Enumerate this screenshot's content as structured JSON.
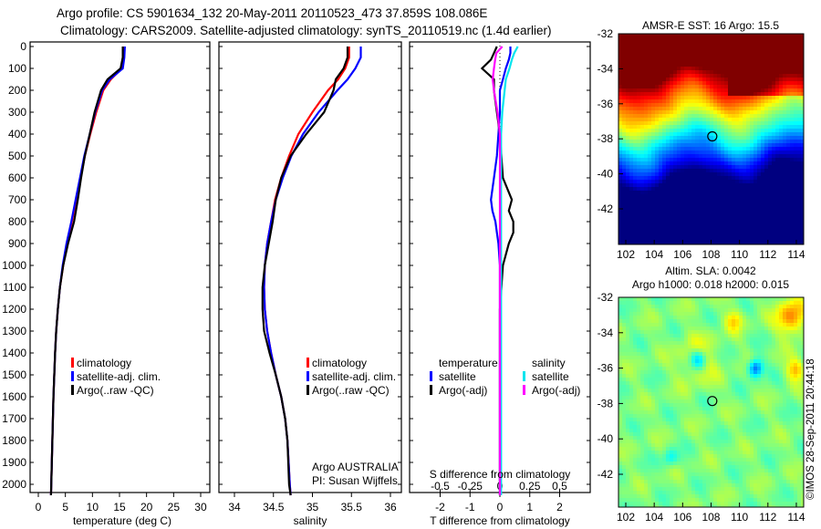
{
  "title_line1": "Argo profile: CS 5901634_132 20-May-2011 20110523_473 37.859S 108.086E",
  "title_line2": "Climatology: CARS2009. Satellite-adjusted climatology: synTS_20110519.nc (1.4d earlier)",
  "colors": {
    "climatology": "#ff0000",
    "satellite": "#0000ff",
    "argo": "#000000",
    "sal_satellite": "#00e5ee",
    "sal_argo": "#ff00ff"
  },
  "depth_ticks": [
    0,
    100,
    200,
    300,
    400,
    500,
    600,
    700,
    800,
    900,
    1000,
    1100,
    1200,
    1300,
    1400,
    1500,
    1600,
    1700,
    1800,
    1900,
    2000
  ],
  "chart_data": [
    {
      "type": "line",
      "xlabel": "temperature (deg C)",
      "ylabel": "depth",
      "xlim": [
        -1,
        31
      ],
      "ylim": [
        2050,
        0
      ],
      "xticks": [
        "0",
        "5",
        "10",
        "15",
        "20",
        "25",
        "30"
      ],
      "depth": [
        0,
        50,
        100,
        150,
        200,
        300,
        400,
        500,
        600,
        700,
        800,
        900,
        1000,
        1100,
        1200,
        1300,
        1400,
        1600,
        1800,
        2000,
        2050
      ],
      "series": [
        {
          "name": "climatology",
          "values": [
            15.7,
            15.6,
            15.4,
            13.4,
            12.0,
            10.7,
            9.6,
            8.6,
            7.8,
            7.0,
            6.2,
            5.3,
            4.6,
            4.0,
            3.6,
            3.3,
            3.1,
            2.8,
            2.6,
            2.4,
            2.35
          ]
        },
        {
          "name": "satellite-adj. clim.",
          "values": [
            16.0,
            15.9,
            15.6,
            13.2,
            11.8,
            10.5,
            9.5,
            8.5,
            7.7,
            6.9,
            6.1,
            5.2,
            4.5,
            4.0,
            3.6,
            3.3,
            3.1,
            2.8,
            2.6,
            2.4,
            2.35
          ]
        },
        {
          "name": "Argo(..raw -QC)",
          "values": [
            15.6,
            15.6,
            15.2,
            12.8,
            11.6,
            10.4,
            9.5,
            8.6,
            7.9,
            7.3,
            6.6,
            5.5,
            4.6,
            4.0,
            3.6,
            3.3,
            3.1,
            2.8,
            2.6,
            2.4,
            2.35
          ]
        }
      ],
      "legend": [
        "climatology",
        "satellite-adj. clim.",
        "Argo(..raw -QC)"
      ]
    },
    {
      "type": "line",
      "xlabel": "salinity",
      "xlim": [
        33.8,
        36.15
      ],
      "ylim": [
        2050,
        0
      ],
      "xticks": [
        "34",
        "34.5",
        "35",
        "35.5",
        "36"
      ],
      "depth": [
        0,
        50,
        100,
        150,
        200,
        300,
        400,
        500,
        600,
        700,
        800,
        900,
        1000,
        1100,
        1200,
        1300,
        1400,
        1500,
        1600,
        1700,
        1800,
        2000,
        2050
      ],
      "series": [
        {
          "name": "climatology",
          "values": [
            35.47,
            35.47,
            35.42,
            35.33,
            35.2,
            35.0,
            34.82,
            34.7,
            34.6,
            34.52,
            34.47,
            34.42,
            34.39,
            34.38,
            34.39,
            34.42,
            34.47,
            34.53,
            34.6,
            34.65,
            34.68,
            34.71,
            34.72
          ]
        },
        {
          "name": "satellite-adj. clim.",
          "values": [
            35.62,
            35.62,
            35.55,
            35.45,
            35.32,
            35.08,
            34.88,
            34.73,
            34.62,
            34.53,
            34.47,
            34.42,
            34.39,
            34.38,
            34.39,
            34.42,
            34.47,
            34.53,
            34.6,
            34.65,
            34.68,
            34.71,
            34.72
          ]
        },
        {
          "name": "Argo(..raw -QC)",
          "values": [
            35.45,
            35.45,
            35.4,
            35.3,
            35.27,
            35.15,
            34.92,
            34.72,
            34.6,
            34.53,
            34.49,
            34.44,
            34.39,
            34.36,
            34.36,
            34.38,
            34.45,
            34.53,
            34.6,
            34.65,
            34.68,
            34.7,
            34.72
          ]
        }
      ],
      "legend": [
        "climatology",
        "satellite-adj. clim.",
        "Argo(..raw -QC)"
      ],
      "annotation": [
        "Argo AUSTRALIA",
        "PI: Susan Wijffels"
      ]
    },
    {
      "type": "line",
      "xlabel": "T difference from climatology",
      "xlabel_top": "S difference from climatology",
      "xlim": [
        -3,
        3
      ],
      "ylim": [
        2050,
        0
      ],
      "xticks": [
        "-2",
        "-1",
        "0",
        "1",
        "2"
      ],
      "xticks_top": [
        "-0.5",
        "-0.25",
        "0",
        "0.25",
        "0.5"
      ],
      "depth": [
        0,
        30,
        60,
        100,
        150,
        200,
        300,
        400,
        500,
        600,
        700,
        750,
        800,
        850,
        900,
        1000,
        1200,
        1400,
        1600,
        1800,
        2000,
        2050
      ],
      "series": [
        {
          "name": "temperature satellite",
          "values": [
            0.35,
            0.35,
            0.3,
            0.2,
            0.1,
            0.0,
            0.0,
            -0.05,
            -0.1,
            -0.2,
            -0.3,
            -0.25,
            -0.15,
            -0.1,
            -0.05,
            0,
            0,
            0,
            0,
            0,
            0,
            0
          ]
        },
        {
          "name": "temperature Argo(-adj)",
          "values": [
            -0.1,
            -0.2,
            -0.3,
            -0.6,
            -0.2,
            -0.2,
            -0.1,
            0.0,
            0.05,
            0.1,
            0.4,
            0.3,
            0.45,
            0.45,
            0.3,
            0.1,
            0,
            0,
            0,
            0,
            0,
            0
          ]
        },
        {
          "name": "salinity satellite",
          "values": [
            0.15,
            0.12,
            0.1,
            0.08,
            0.05,
            0.04,
            0.02,
            0.01,
            0.01,
            0.01,
            0.01,
            0.01,
            0.01,
            0.01,
            0.01,
            0.01,
            0.01,
            0.01,
            0.01,
            0.01,
            0.01,
            0.01
          ]
        },
        {
          "name": "salinity Argo(-adj)",
          "values": [
            0.02,
            -0.03,
            -0.04,
            -0.05,
            -0.06,
            -0.05,
            -0.02,
            0,
            0,
            0,
            0,
            0,
            0,
            0,
            0,
            0,
            0,
            0,
            0,
            0,
            0,
            0
          ]
        }
      ],
      "legend_headers": [
        "temperature",
        "salinity"
      ],
      "legend": [
        "satellite",
        "Argo(-adj)",
        "satellite",
        "Argo(-adj)"
      ]
    }
  ],
  "maps": {
    "top_title": "AMSR-E SST: 16 Argo: 15.5",
    "bottom_title1": "Altim. SLA: 0.0042",
    "bottom_title2": "Argo h1000: 0.018 h2000: 0.015",
    "lat_ticks": [
      "-32",
      "-34",
      "-36",
      "-38",
      "-40",
      "-42"
    ],
    "lon_ticks": [
      "102",
      "104",
      "106",
      "108",
      "110",
      "112",
      "114"
    ],
    "argo_lon": 108.086,
    "argo_lat": -37.859
  },
  "credit": "©IMOS 28-Sep-2011 20:44:18"
}
